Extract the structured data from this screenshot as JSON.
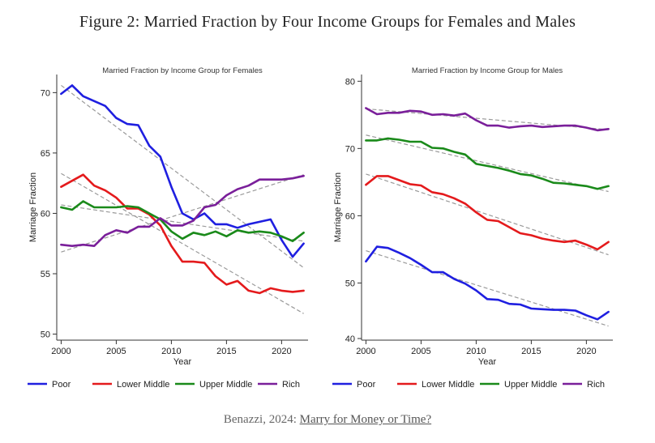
{
  "figure_title": "Figure 2: Married Fraction by Four Income Groups for Females and Males",
  "caption": {
    "prefix": "Benazzi, 2024: ",
    "link_text": "Marry for Money or Time?"
  },
  "chart_data": [
    {
      "type": "line",
      "title": "Married Fraction by Income Group for Females",
      "xlabel": "Year",
      "ylabel": "Marriage Fraction",
      "xlim": [
        1999.6,
        2022.4
      ],
      "ylim": [
        49.5,
        71.5
      ],
      "xticks": [
        2000,
        2005,
        2010,
        2015,
        2020
      ],
      "yticks": [
        50,
        55,
        60,
        65,
        70
      ],
      "legend_position": "bottom",
      "x": [
        2000,
        2001,
        2002,
        2003,
        2004,
        2005,
        2006,
        2007,
        2008,
        2009,
        2010,
        2011,
        2012,
        2013,
        2014,
        2015,
        2016,
        2017,
        2018,
        2019,
        2020,
        2021,
        2022
      ],
      "series": [
        {
          "name": "Poor",
          "color": "#1f1fe0",
          "values": [
            69.9,
            70.6,
            69.7,
            69.3,
            68.9,
            67.9,
            67.4,
            67.3,
            65.6,
            64.7,
            62.2,
            60.0,
            59.5,
            60.0,
            59.1,
            59.1,
            58.8,
            59.1,
            59.3,
            59.5,
            57.8,
            56.4,
            57.5
          ],
          "trend": [
            70.6,
            55.5
          ]
        },
        {
          "name": "Lower Middle",
          "color": "#e41a1c",
          "values": [
            62.2,
            62.7,
            63.2,
            62.3,
            61.9,
            61.3,
            60.4,
            60.4,
            59.9,
            59.0,
            57.3,
            56.0,
            56.0,
            55.9,
            54.8,
            54.1,
            54.4,
            53.6,
            53.4,
            53.8,
            53.6,
            53.5,
            53.6
          ],
          "trend": [
            63.3,
            51.7
          ]
        },
        {
          "name": "Upper Middle",
          "color": "#1a8a1a",
          "values": [
            60.5,
            60.3,
            61.0,
            60.5,
            60.5,
            60.5,
            60.6,
            60.5,
            60.0,
            59.5,
            58.5,
            57.9,
            58.4,
            58.2,
            58.5,
            58.1,
            58.6,
            58.4,
            58.5,
            58.4,
            58.1,
            57.7,
            58.4
          ],
          "trend": [
            60.7,
            57.7
          ]
        },
        {
          "name": "Rich",
          "color": "#7a1f9a",
          "values": [
            57.4,
            57.3,
            57.4,
            57.3,
            58.2,
            58.6,
            58.4,
            58.9,
            58.9,
            59.6,
            59.0,
            59.0,
            59.4,
            60.5,
            60.7,
            61.5,
            62.0,
            62.3,
            62.8,
            62.8,
            62.8,
            62.9,
            63.1
          ],
          "trend": [
            56.8,
            63.2
          ]
        }
      ]
    },
    {
      "type": "line",
      "title": "Married Fraction by Income Group for Males",
      "xlabel": "Year",
      "ylabel": "Marriage Fraction",
      "xlim": [
        1999.6,
        2022.4
      ],
      "ylim": [
        41.5,
        81.0
      ],
      "xticks": [
        2000,
        2005,
        2010,
        2015,
        2020
      ],
      "yticks": [
        40,
        50,
        60,
        70,
        80
      ],
      "legend_position": "bottom",
      "x": [
        2000,
        2001,
        2002,
        2003,
        2004,
        2005,
        2006,
        2007,
        2008,
        2009,
        2010,
        2011,
        2012,
        2013,
        2014,
        2015,
        2016,
        2017,
        2018,
        2019,
        2020,
        2021,
        2022
      ],
      "series": [
        {
          "name": "Poor",
          "color": "#1f1fe0",
          "values": [
            53.2,
            55.4,
            55.2,
            54.5,
            53.7,
            52.7,
            51.6,
            51.6,
            50.6,
            49.9,
            48.9,
            47.6,
            47.5,
            46.9,
            46.8,
            46.2,
            46.1,
            46.0,
            46.0,
            45.9,
            45.2,
            44.6,
            45.7
          ],
          "trend": [
            54.8,
            43.6
          ]
        },
        {
          "name": "Lower Middle",
          "color": "#e41a1c",
          "values": [
            64.6,
            65.9,
            65.9,
            65.3,
            64.7,
            64.5,
            63.5,
            63.2,
            62.6,
            61.8,
            60.5,
            59.4,
            59.2,
            58.3,
            57.4,
            57.1,
            56.6,
            56.3,
            56.1,
            56.3,
            55.7,
            55.0,
            56.1
          ],
          "trend": [
            66.2,
            54.2
          ]
        },
        {
          "name": "Upper Middle",
          "color": "#1a8a1a",
          "values": [
            71.2,
            71.2,
            71.5,
            71.3,
            71.0,
            71.0,
            70.1,
            70.0,
            69.5,
            69.1,
            67.7,
            67.4,
            67.1,
            66.7,
            66.2,
            66.0,
            65.5,
            64.9,
            64.8,
            64.6,
            64.4,
            64.0,
            64.4
          ],
          "trend": [
            72.0,
            63.6
          ]
        },
        {
          "name": "Rich",
          "color": "#7a1f9a",
          "values": [
            76.0,
            75.1,
            75.3,
            75.3,
            75.6,
            75.5,
            75.0,
            75.1,
            74.9,
            75.2,
            74.2,
            73.4,
            73.4,
            73.1,
            73.3,
            73.4,
            73.2,
            73.3,
            73.4,
            73.4,
            73.1,
            72.7,
            72.9
          ],
          "trend": [
            75.9,
            72.8
          ]
        }
      ]
    }
  ]
}
